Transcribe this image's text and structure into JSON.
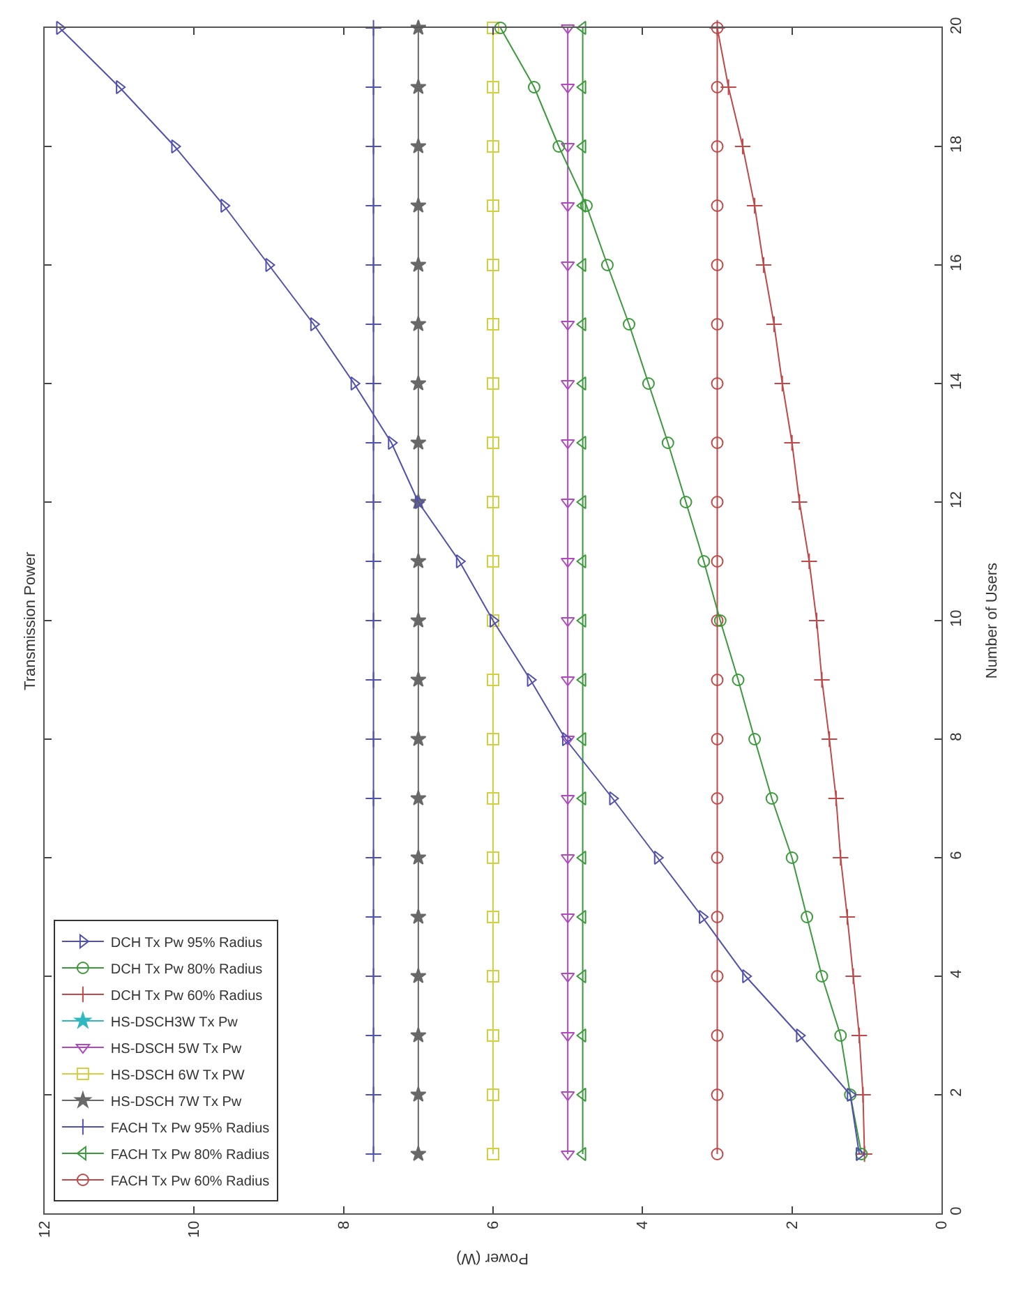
{
  "chart_data": {
    "type": "line",
    "title": "Transmission Power",
    "xlabel": "Power (W)",
    "ylabel": "Number of Users",
    "xlim": [
      12,
      0
    ],
    "xticks": [
      0,
      2,
      4,
      6,
      8,
      10,
      12
    ],
    "ylim": [
      0,
      20
    ],
    "yticks": [
      0,
      2,
      4,
      6,
      8,
      10,
      12,
      14,
      16,
      18,
      20
    ],
    "grid": false,
    "legend": "bottom left",
    "line_style": "solid",
    "series": [
      {
        "name": "DCH Tx Pw 95% Radius",
        "color": "#5050b0",
        "marker": "triangle-right",
        "x": [
          1.1,
          1.22,
          1.9,
          2.62,
          3.2,
          3.8,
          4.4,
          5.03,
          5.5,
          6.0,
          6.45,
          7.0,
          7.36,
          7.86,
          8.4,
          9.0,
          9.6,
          10.26,
          11.0,
          11.8
        ],
        "values": [
          1,
          2,
          3,
          4,
          5,
          6,
          7,
          8,
          9,
          10,
          11,
          12,
          13,
          14,
          15,
          16,
          17,
          18,
          19,
          20
        ]
      },
      {
        "name": "DCH Tx Pw 80% Radius",
        "color": "#3a9a3a",
        "marker": "circle",
        "x": [
          1.07,
          1.22,
          1.35,
          1.6,
          1.8,
          2.0,
          2.27,
          2.5,
          2.72,
          2.96,
          3.18,
          3.42,
          3.66,
          3.92,
          4.18,
          4.47,
          4.75,
          5.12,
          5.45,
          5.9
        ],
        "values": [
          1,
          2,
          3,
          4,
          5,
          6,
          7,
          8,
          9,
          10,
          11,
          12,
          13,
          14,
          15,
          16,
          17,
          18,
          19,
          20
        ]
      },
      {
        "name": "DCH Tx Pw 60% Radius",
        "color": "#c04848",
        "marker": "cross",
        "x": [
          1.03,
          1.05,
          1.1,
          1.18,
          1.26,
          1.35,
          1.41,
          1.5,
          1.6,
          1.67,
          1.77,
          1.9,
          2.0,
          2.13,
          2.24,
          2.38,
          2.5,
          2.66,
          2.85,
          3.0
        ],
        "values": [
          1,
          2,
          3,
          4,
          5,
          6,
          7,
          8,
          9,
          10,
          11,
          12,
          13,
          14,
          15,
          16,
          17,
          18,
          19,
          20
        ]
      },
      {
        "name": "HS-DSCH3W Tx Pw",
        "color": "#30b8c0",
        "marker": "star",
        "x": [
          null,
          null,
          null,
          null,
          null,
          null,
          null,
          null,
          null,
          null,
          null,
          null,
          null,
          null,
          null,
          null,
          null,
          null,
          null,
          null
        ],
        "values": [
          null,
          null,
          null,
          null,
          null,
          null,
          null,
          null,
          null,
          null,
          null,
          null,
          null,
          null,
          null,
          null,
          null,
          null,
          null,
          null
        ]
      },
      {
        "name": "HS-DSCH 5W Tx Pw",
        "color": "#b048c0",
        "marker": "triangle-down",
        "x": [
          5,
          5,
          5,
          5,
          5,
          5,
          5,
          5,
          5,
          5,
          5,
          5,
          5,
          5,
          5,
          5,
          5,
          5,
          5,
          5
        ],
        "values": [
          1,
          2,
          3,
          4,
          5,
          6,
          7,
          8,
          9,
          10,
          11,
          12,
          13,
          14,
          15,
          16,
          17,
          18,
          19,
          20
        ]
      },
      {
        "name": "HS-DSCH 6W Tx PW",
        "color": "#d0d040",
        "marker": "square",
        "x": [
          6,
          6,
          6,
          6,
          6,
          6,
          6,
          6,
          6,
          6,
          6,
          6,
          6,
          6,
          6,
          6,
          6,
          6,
          6,
          6
        ],
        "values": [
          1,
          2,
          3,
          4,
          5,
          6,
          7,
          8,
          9,
          10,
          11,
          12,
          13,
          14,
          15,
          16,
          17,
          18,
          19,
          20
        ]
      },
      {
        "name": "HS-DSCH 7W Tx Pw",
        "color": "#686868",
        "marker": "star",
        "x": [
          7,
          7,
          7,
          7,
          7,
          7,
          7,
          7,
          7,
          7,
          7,
          7,
          7,
          7,
          7,
          7,
          7,
          7,
          7,
          7
        ],
        "values": [
          1,
          2,
          3,
          4,
          5,
          6,
          7,
          8,
          9,
          10,
          11,
          12,
          13,
          14,
          15,
          16,
          17,
          18,
          19,
          20
        ]
      },
      {
        "name": "FACH Tx Pw 95% Radius",
        "color": "#5050b0",
        "marker": "cross",
        "x": [
          7.6,
          7.6,
          7.6,
          7.6,
          7.6,
          7.6,
          7.6,
          7.6,
          7.6,
          7.6,
          7.6,
          7.6,
          7.6,
          7.6,
          7.6,
          7.6,
          7.6,
          7.6,
          7.6,
          7.6
        ],
        "values": [
          1,
          2,
          3,
          4,
          5,
          6,
          7,
          8,
          9,
          10,
          11,
          12,
          13,
          14,
          15,
          16,
          17,
          18,
          19,
          20
        ]
      },
      {
        "name": "FACH Tx Pw 80% Radius",
        "color": "#3a9a3a",
        "marker": "triangle-left",
        "x": [
          4.8,
          4.8,
          4.8,
          4.8,
          4.8,
          4.8,
          4.8,
          4.8,
          4.8,
          4.8,
          4.8,
          4.8,
          4.8,
          4.8,
          4.8,
          4.8,
          4.8,
          4.8,
          4.8,
          4.8
        ],
        "values": [
          1,
          2,
          3,
          4,
          5,
          6,
          7,
          8,
          9,
          10,
          11,
          12,
          13,
          14,
          15,
          16,
          17,
          18,
          19,
          20
        ]
      },
      {
        "name": "FACH Tx Pw 60% Radius",
        "color": "#c04848",
        "marker": "circle",
        "x": [
          3,
          3,
          3,
          3,
          3,
          3,
          3,
          3,
          3,
          3,
          3,
          3,
          3,
          3,
          3,
          3,
          3,
          3,
          3,
          3
        ],
        "values": [
          1,
          2,
          3,
          4,
          5,
          6,
          7,
          8,
          9,
          10,
          11,
          12,
          13,
          14,
          15,
          16,
          17,
          18,
          19,
          20
        ]
      }
    ]
  }
}
